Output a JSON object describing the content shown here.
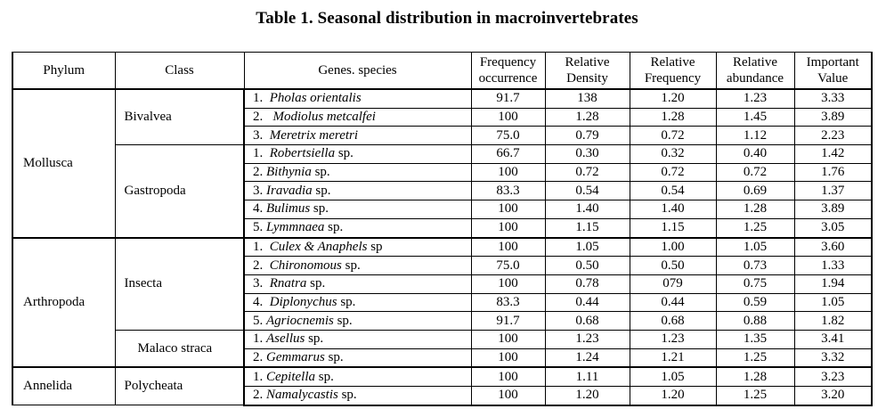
{
  "title": "Table 1.  Seasonal distribution in macroinvertebrates",
  "headers": {
    "phylum": "Phylum",
    "class": "Class",
    "species": "Genes. species",
    "freq_1": "Frequency",
    "freq_2": "occurrence",
    "rden_1": "Relative",
    "rden_2": "Density",
    "rfreq_1": "Relative",
    "rfreq_2": "Frequency",
    "rab_1": "Relative",
    "rab_2": "abundance",
    "iv_1": "Important",
    "iv_2": "Value"
  },
  "groups": {
    "mollusca": {
      "phylum": "Mollusca",
      "bivalvea": "Bivalvea",
      "gastropoda": "Gastropoda"
    },
    "arthropoda": {
      "phylum": "Arthropoda",
      "insecta": "Insecta",
      "malacostraca": "Malaco straca"
    },
    "annelida": {
      "phylum": "Annelida",
      "polycheata": "Polycheata"
    }
  },
  "rows": [
    {
      "num": "1.  ",
      "genus": "Pholas orientalis",
      "suffix": "",
      "freq": "91.7",
      "rden": "138",
      "rfreq": "1.20",
      "rab": "1.23",
      "iv": "3.33"
    },
    {
      "num": "2.   ",
      "genus": "Modiolus metcalfei",
      "suffix": "",
      "freq": "100",
      "rden": "1.28",
      "rfreq": "1.28",
      "rab": "1.45",
      "iv": "3.89"
    },
    {
      "num": "3.  ",
      "genus": "Meretrix meretri",
      "suffix": "",
      "freq": "75.0",
      "rden": "0.79",
      "rfreq": "0.72",
      "rab": "1.12",
      "iv": "2.23"
    },
    {
      "num": "1.  ",
      "genus": "Robertsiella",
      "suffix": " sp.",
      "freq": "66.7",
      "rden": "0.30",
      "rfreq": "0.32",
      "rab": "0.40",
      "iv": "1.42"
    },
    {
      "num": "2. ",
      "genus": "Bithynia",
      "suffix": " sp.",
      "freq": "100",
      "rden": "0.72",
      "rfreq": "0.72",
      "rab": "0.72",
      "iv": "1.76"
    },
    {
      "num": "3. ",
      "genus": "Iravadia",
      "suffix": " sp.",
      "freq": "83.3",
      "rden": "0.54",
      "rfreq": "0.54",
      "rab": "0.69",
      "iv": "1.37"
    },
    {
      "num": "4. ",
      "genus": "Bulimus",
      "suffix": " sp.",
      "freq": "100",
      "rden": "1.40",
      "rfreq": "1.40",
      "rab": "1.28",
      "iv": "3.89"
    },
    {
      "num": "5. ",
      "genus": "Lymmnaea",
      "suffix": " sp.",
      "freq": "100",
      "rden": "1.15",
      "rfreq": "1.15",
      "rab": "1.25",
      "iv": "3.05"
    },
    {
      "num": "1.  ",
      "genus": "Culex & Anaphels",
      "suffix": " sp",
      "freq": "100",
      "rden": "1.05",
      "rfreq": "1.00",
      "rab": "1.05",
      "iv": "3.60"
    },
    {
      "num": "2.  ",
      "genus": "Chironomous",
      "suffix": " sp.",
      "freq": "75.0",
      "rden": "0.50",
      "rfreq": "0.50",
      "rab": "0.73",
      "iv": "1.33"
    },
    {
      "num": "3.  ",
      "genus": "Rnatra",
      "suffix": " sp.",
      "freq": "100",
      "rden": "0.78",
      "rfreq": "079",
      "rab": "0.75",
      "iv": "1.94"
    },
    {
      "num": "4.  ",
      "genus": "Diplonychus",
      "suffix": " sp.",
      "freq": "83.3",
      "rden": "0.44",
      "rfreq": "0.44",
      "rab": "0.59",
      "iv": "1.05"
    },
    {
      "num": "5. ",
      "genus": "Agriocnemis",
      "suffix": " sp.",
      "freq": "91.7",
      "rden": "0.68",
      "rfreq": "0.68",
      "rab": "0.88",
      "iv": "1.82"
    },
    {
      "num": "1. ",
      "genus": "Asellus",
      "suffix": " sp.",
      "freq": "100",
      "rden": "1.23",
      "rfreq": "1.23",
      "rab": "1.35",
      "iv": "3.41"
    },
    {
      "num": "2. ",
      "genus": "Gemmarus",
      "suffix": " sp.",
      "freq": "100",
      "rden": "1.24",
      "rfreq": "1.21",
      "rab": "1.25",
      "iv": "3.32"
    },
    {
      "num": "1. ",
      "genus": "Cepitella",
      "suffix": " sp.",
      "freq": "100",
      "rden": "1.11",
      "rfreq": "1.05",
      "rab": "1.28",
      "iv": "3.23"
    },
    {
      "num": "2. ",
      "genus": "Namalycastis",
      "suffix": " sp.",
      "freq": "100",
      "rden": "1.20",
      "rfreq": "1.20",
      "rab": "1.25",
      "iv": "3.20"
    }
  ]
}
